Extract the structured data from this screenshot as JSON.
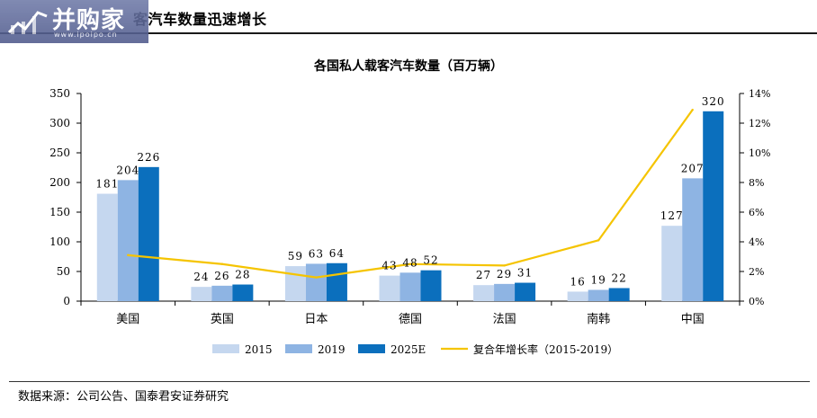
{
  "header": {
    "title": "客汽车数量迅速增长",
    "logo_text": "并购家",
    "logo_url": "www.ipoipo.cn"
  },
  "footer": {
    "source": "数据来源：公司公告、国泰君安证券研究"
  },
  "colors": {
    "s2015": "#c5d7ef",
    "s2019": "#8eb4e3",
    "s2025": "#0b6fbd",
    "growth": "#f5c400"
  },
  "chart_data": {
    "type": "bar",
    "title": "各国私人载客汽车数量（百万辆）",
    "categories": [
      "美国",
      "英国",
      "日本",
      "德国",
      "法国",
      "南韩",
      "中国"
    ],
    "series": [
      {
        "name": "2015",
        "type": "bar",
        "axis": "left",
        "values": [
          181,
          24,
          59,
          43,
          27,
          16,
          127
        ]
      },
      {
        "name": "2019",
        "type": "bar",
        "axis": "left",
        "values": [
          204,
          26,
          63,
          48,
          29,
          19,
          207
        ]
      },
      {
        "name": "2025E",
        "type": "bar",
        "axis": "left",
        "values": [
          226,
          28,
          64,
          52,
          31,
          22,
          320
        ]
      },
      {
        "name": "复合年增长率（2015-2019）",
        "type": "line",
        "axis": "right",
        "values": [
          3.1,
          2.5,
          1.6,
          2.5,
          2.4,
          4.1,
          12.9
        ]
      }
    ],
    "ylim_left": [
      0,
      350
    ],
    "yticks_left": [
      "0",
      "50",
      "100",
      "150",
      "200",
      "250",
      "300",
      "350"
    ],
    "ylim_right": [
      0,
      14
    ],
    "yticks_right": [
      "0%",
      "2%",
      "4%",
      "6%",
      "8%",
      "10%",
      "12%",
      "14%"
    ],
    "grid": false,
    "legend": "bottom"
  }
}
